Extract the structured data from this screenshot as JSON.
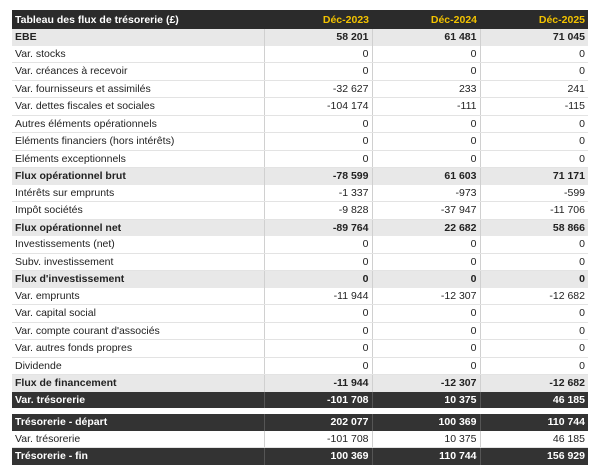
{
  "table": {
    "header": {
      "title": "Tableau des flux de trésorerie (£)",
      "years": [
        "Déc-2023",
        "Déc-2024",
        "Déc-2025"
      ]
    },
    "rows": [
      {
        "label": "EBE",
        "v": [
          "58 201",
          "61 481",
          "71 045"
        ],
        "style": "shaded"
      },
      {
        "label": "Var. stocks",
        "v": [
          "0",
          "0",
          "0"
        ],
        "style": "normal"
      },
      {
        "label": "Var. créances à recevoir",
        "v": [
          "0",
          "0",
          "0"
        ],
        "style": "normal"
      },
      {
        "label": "Var. fournisseurs et assimilés",
        "v": [
          "-32 627",
          "233",
          "241"
        ],
        "style": "normal"
      },
      {
        "label": "Var. dettes fiscales et sociales",
        "v": [
          "-104 174",
          "-111",
          "-115"
        ],
        "style": "normal"
      },
      {
        "label": "Autres éléments opérationnels",
        "v": [
          "0",
          "0",
          "0"
        ],
        "style": "normal"
      },
      {
        "label": "Eléments financiers (hors intérêts)",
        "v": [
          "0",
          "0",
          "0"
        ],
        "style": "normal"
      },
      {
        "label": "Eléments exceptionnels",
        "v": [
          "0",
          "0",
          "0"
        ],
        "style": "normal"
      },
      {
        "label": "Flux opérationnel brut",
        "v": [
          "-78 599",
          "61 603",
          "71 171"
        ],
        "style": "shaded"
      },
      {
        "label": "Intérêts sur emprunts",
        "v": [
          "-1 337",
          "-973",
          "-599"
        ],
        "style": "normal"
      },
      {
        "label": "Impôt sociétés",
        "v": [
          "-9 828",
          "-37 947",
          "-11 706"
        ],
        "style": "normal"
      },
      {
        "label": "Flux opérationnel net",
        "v": [
          "-89 764",
          "22 682",
          "58 866"
        ],
        "style": "shaded"
      },
      {
        "label": "Investissements (net)",
        "v": [
          "0",
          "0",
          "0"
        ],
        "style": "normal"
      },
      {
        "label": "Subv. investissement",
        "v": [
          "0",
          "0",
          "0"
        ],
        "style": "normal"
      },
      {
        "label": "Flux d'investissement",
        "v": [
          "0",
          "0",
          "0"
        ],
        "style": "shaded"
      },
      {
        "label": "Var. emprunts",
        "v": [
          "-11 944",
          "-12 307",
          "-12 682"
        ],
        "style": "normal"
      },
      {
        "label": "Var. capital social",
        "v": [
          "0",
          "0",
          "0"
        ],
        "style": "normal"
      },
      {
        "label": "Var. compte courant d'associés",
        "v": [
          "0",
          "0",
          "0"
        ],
        "style": "normal"
      },
      {
        "label": "Var. autres fonds propres",
        "v": [
          "0",
          "0",
          "0"
        ],
        "style": "normal"
      },
      {
        "label": "Dividende",
        "v": [
          "0",
          "0",
          "0"
        ],
        "style": "normal"
      },
      {
        "label": "Flux de financement",
        "v": [
          "-11 944",
          "-12 307",
          "-12 682"
        ],
        "style": "shaded"
      },
      {
        "label": "Var. trésorerie",
        "v": [
          "-101 708",
          "10 375",
          "46 185"
        ],
        "style": "dark"
      },
      {
        "label": "",
        "v": [
          "",
          "",
          ""
        ],
        "style": "spacer"
      },
      {
        "label": "Trésorerie - départ",
        "v": [
          "202 077",
          "100 369",
          "110 744"
        ],
        "style": "dark"
      },
      {
        "label": "Var. trésorerie",
        "v": [
          "-101 708",
          "10 375",
          "46 185"
        ],
        "style": "normal"
      },
      {
        "label": "Trésorerie - fin",
        "v": [
          "100 369",
          "110 744",
          "156 929"
        ],
        "style": "dark"
      }
    ]
  }
}
